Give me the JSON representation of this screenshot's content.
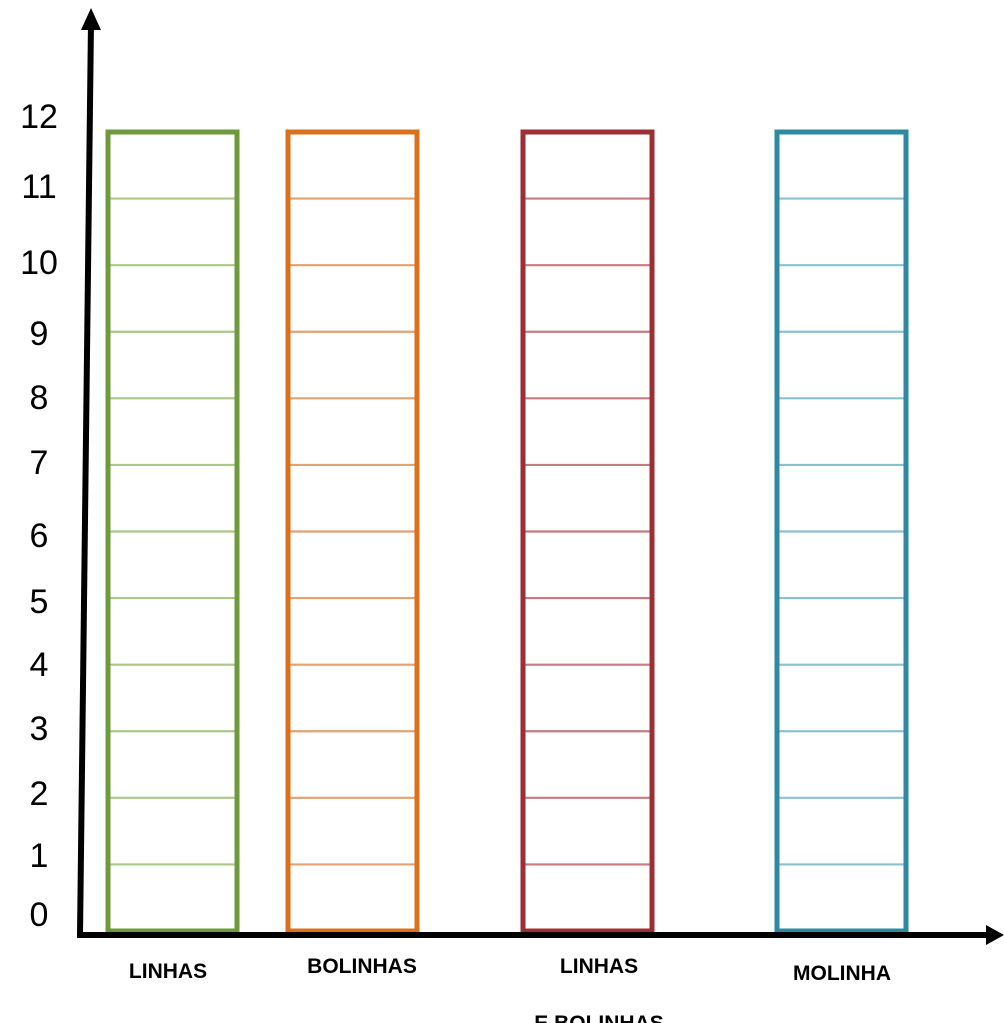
{
  "chart_data": {
    "type": "bar",
    "y_ticks": [
      "0",
      "1",
      "2",
      "3",
      "4",
      "5",
      "6",
      "7",
      "8",
      "9",
      "10",
      "11",
      "12"
    ],
    "ylim": [
      0,
      12
    ],
    "grid": false,
    "categories": [
      {
        "label_lines": [
          "LINHAS"
        ],
        "color": "#6f9a3c",
        "line_color": "#a9c88a",
        "cells": 12
      },
      {
        "label_lines": [
          "BOLINHAS"
        ],
        "color": "#d9701e",
        "line_color": "#e4a171",
        "cells": 12
      },
      {
        "label_lines": [
          "LINHAS",
          "E BOLINHAS"
        ],
        "color": "#9b2f34",
        "line_color": "#c77b80",
        "cells": 12
      },
      {
        "label_lines": [
          "MOLINHA"
        ],
        "color": "#2e8aa3",
        "line_color": "#8cc0cf",
        "cells": 12
      }
    ]
  }
}
